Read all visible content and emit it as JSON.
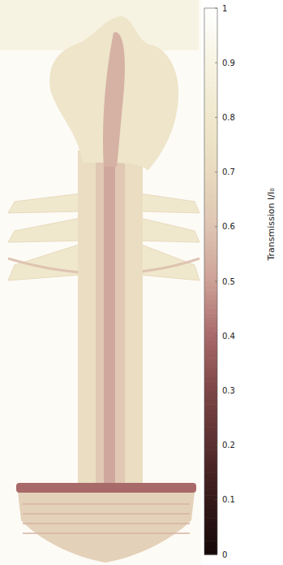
{
  "chart_data": {
    "type": "image",
    "colorbar": {
      "label": "Transmission I/I₀",
      "range": [
        0,
        1
      ],
      "ticks": [
        0,
        0.1,
        0.2,
        0.3,
        0.4,
        0.5,
        0.6,
        0.7,
        0.8,
        0.9,
        1
      ]
    }
  }
}
